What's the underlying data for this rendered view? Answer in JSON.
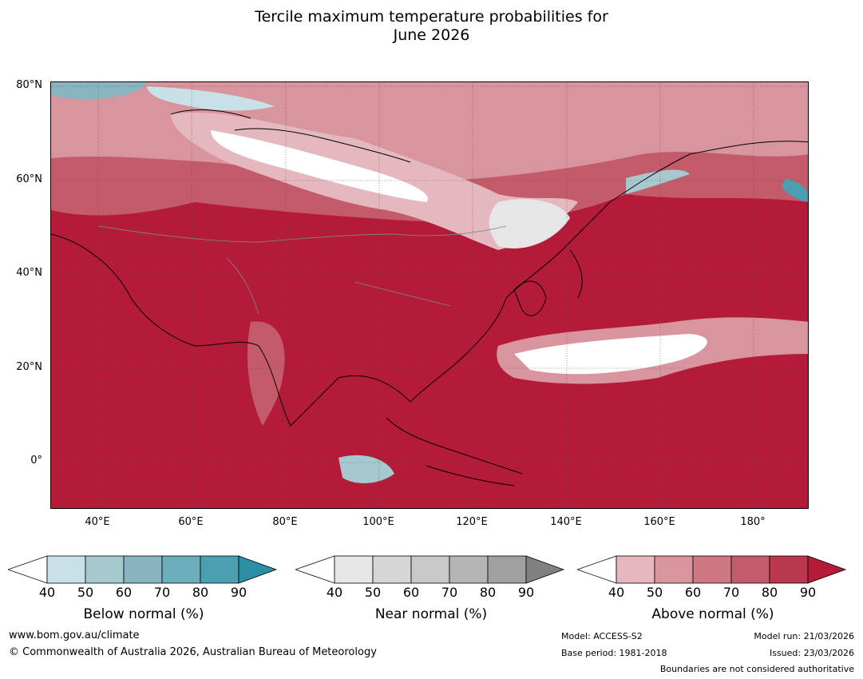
{
  "title": {
    "line1": "Tercile maximum temperature probabilities for",
    "line2": "June 2026"
  },
  "map": {
    "lat_labels": [
      "80°N",
      "60°N",
      "40°N",
      "20°N",
      "0°"
    ],
    "lon_labels": [
      "40°E",
      "60°E",
      "80°E",
      "100°E",
      "120°E",
      "140°E",
      "160°E",
      "180°"
    ],
    "extent": {
      "lon": [
        30,
        192
      ],
      "lat": [
        -10,
        81
      ]
    }
  },
  "colorbars": [
    {
      "label": "Below normal (%)",
      "ticks": [
        "40",
        "50",
        "60",
        "70",
        "80",
        "90"
      ],
      "colors": [
        "#c7e1e7",
        "#a6c9cf",
        "#88b5bf",
        "#6badb9",
        "#4aa0b0",
        "#2b8ea5"
      ]
    },
    {
      "label": "Near normal (%)",
      "ticks": [
        "40",
        "50",
        "60",
        "70",
        "80",
        "90"
      ],
      "colors": [
        "#e6e6e6",
        "#d6d6d6",
        "#c8c8c8",
        "#b5b5b5",
        "#a0a0a0",
        "#808080"
      ]
    },
    {
      "label": "Above normal (%)",
      "ticks": [
        "40",
        "50",
        "60",
        "70",
        "80",
        "90"
      ],
      "colors": [
        "#e5b8bf",
        "#d8959e",
        "#cd7783",
        "#c35b6b",
        "#b9384d",
        "#b41b38"
      ]
    }
  ],
  "footer": {
    "url": "www.bom.gov.au/climate",
    "copyright": "© Commonwealth of Australia 2026, Australian Bureau of Meteorology",
    "model": "Model: ACCESS-S2",
    "base_period": "Base period: 1981-2018",
    "model_run": "Model run: 21/03/2026",
    "issued": "Issued: 23/03/2026",
    "disclaimer": "Boundaries are not considered authoritative"
  }
}
